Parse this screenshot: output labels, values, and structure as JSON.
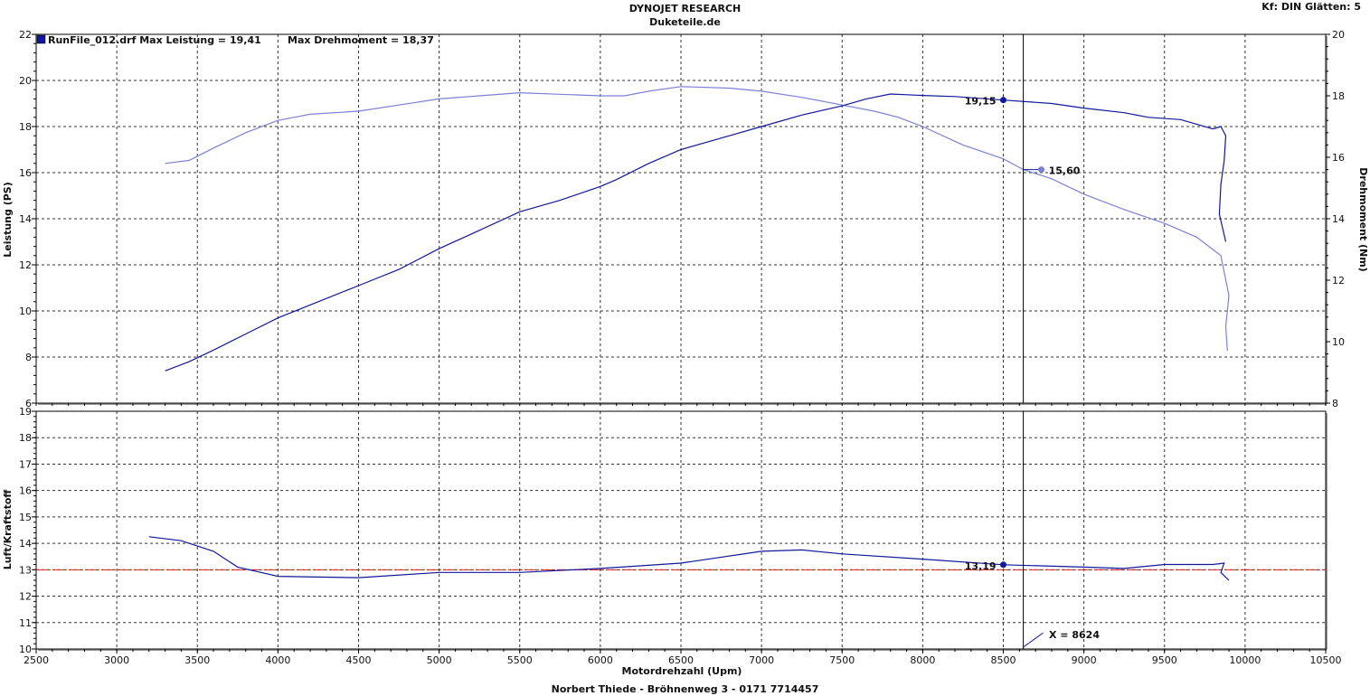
{
  "header": {
    "title": "DYNOJET RESEARCH",
    "subtitle": "Duketeile.de",
    "settings": "Kf: DIN  Glätten: 5"
  },
  "footer": {
    "text": "Norbert Thiede - Bröhnenweg 3 - 0171 7714457"
  },
  "colors": {
    "power": "#10189c",
    "torque": "#7b80d6",
    "afr": "#10189c",
    "afr_ref": "#e02020",
    "cursor": "#000000"
  },
  "chart_data": [
    {
      "type": "line",
      "legend": {
        "label": "RunFile_012.drf Max Leistung = 19,41",
        "extra": "Max Drehmoment = 18,37",
        "placement": "top-left"
      },
      "xlim": [
        2500,
        10500
      ],
      "xticks": [
        "2500",
        "3000",
        "3500",
        "4000",
        "4500",
        "5000",
        "5500",
        "6000",
        "6500",
        "7000",
        "7500",
        "8000",
        "8500",
        "9000",
        "9500",
        "10000",
        "10500"
      ],
      "ylabel": "Leistung (PS)",
      "ylim": [
        6,
        22
      ],
      "yticks": [
        "6",
        "8",
        "10",
        "12",
        "14",
        "16",
        "18",
        "20",
        "22"
      ],
      "y2label": "Drehmoment (Nm)",
      "y2lim": [
        8,
        20
      ],
      "y2ticks": [
        "8",
        "10",
        "12",
        "14",
        "16",
        "18",
        "20"
      ],
      "grid": true,
      "series": [
        {
          "axis": "left",
          "points": [
            [
              3300,
              7.4
            ],
            [
              3450,
              7.8
            ],
            [
              3600,
              8.3
            ],
            [
              3800,
              9.0
            ],
            [
              4000,
              9.7
            ],
            [
              4250,
              10.4
            ],
            [
              4500,
              11.1
            ],
            [
              4750,
              11.8
            ],
            [
              5000,
              12.7
            ],
            [
              5250,
              13.5
            ],
            [
              5500,
              14.3
            ],
            [
              5750,
              14.8
            ],
            [
              6000,
              15.4
            ],
            [
              6100,
              15.7
            ],
            [
              6300,
              16.4
            ],
            [
              6500,
              17.0
            ],
            [
              6800,
              17.6
            ],
            [
              7000,
              18.0
            ],
            [
              7250,
              18.5
            ],
            [
              7500,
              18.9
            ],
            [
              7650,
              19.2
            ],
            [
              7800,
              19.41
            ],
            [
              8000,
              19.35
            ],
            [
              8200,
              19.3
            ],
            [
              8500,
              19.15
            ],
            [
              8800,
              19.0
            ],
            [
              9000,
              18.8
            ],
            [
              9250,
              18.6
            ],
            [
              9400,
              18.4
            ],
            [
              9600,
              18.3
            ],
            [
              9700,
              18.1
            ],
            [
              9800,
              17.9
            ],
            [
              9850,
              18.0
            ],
            [
              9880,
              17.6
            ],
            [
              9870,
              16.5
            ],
            [
              9850,
              15.5
            ],
            [
              9840,
              14.2
            ],
            [
              9880,
              13.0
            ]
          ]
        },
        {
          "axis": "right",
          "points": [
            [
              3300,
              15.8
            ],
            [
              3450,
              15.9
            ],
            [
              3600,
              16.3
            ],
            [
              3800,
              16.8
            ],
            [
              4000,
              17.2
            ],
            [
              4200,
              17.4
            ],
            [
              4500,
              17.5
            ],
            [
              4750,
              17.7
            ],
            [
              5000,
              17.9
            ],
            [
              5250,
              18.0
            ],
            [
              5500,
              18.1
            ],
            [
              5750,
              18.05
            ],
            [
              6000,
              18.0
            ],
            [
              6150,
              18.0
            ],
            [
              6300,
              18.15
            ],
            [
              6500,
              18.3
            ],
            [
              6800,
              18.25
            ],
            [
              7000,
              18.15
            ],
            [
              7250,
              17.95
            ],
            [
              7500,
              17.7
            ],
            [
              7700,
              17.5
            ],
            [
              7850,
              17.3
            ],
            [
              8000,
              17.0
            ],
            [
              8250,
              16.4
            ],
            [
              8500,
              15.95
            ],
            [
              8624,
              15.6
            ],
            [
              8800,
              15.3
            ],
            [
              9000,
              14.8
            ],
            [
              9250,
              14.3
            ],
            [
              9500,
              13.85
            ],
            [
              9700,
              13.4
            ],
            [
              9800,
              13.0
            ],
            [
              9850,
              12.8
            ],
            [
              9900,
              11.5
            ],
            [
              9880,
              10.5
            ],
            [
              9890,
              9.7
            ]
          ]
        }
      ],
      "annotations": [
        {
          "text": "19,15",
          "x": 8500,
          "y": 19.15,
          "axis": "left"
        },
        {
          "text": "15,60",
          "x": 8624,
          "y": 15.6,
          "axis": "right"
        }
      ]
    },
    {
      "type": "line",
      "xlabel": "Motordrehzahl (Upm)",
      "xlim": [
        2500,
        10500
      ],
      "xticks": [
        "2500",
        "3000",
        "3500",
        "4000",
        "4500",
        "5000",
        "5500",
        "6000",
        "6500",
        "7000",
        "7500",
        "8000",
        "8500",
        "9000",
        "9500",
        "10000",
        "10500"
      ],
      "ylabel": "Luft/Kraftstoff",
      "ylim": [
        10,
        19
      ],
      "yticks": [
        "10",
        "11",
        "12",
        "13",
        "14",
        "15",
        "16",
        "17",
        "18",
        "19"
      ],
      "grid": true,
      "reference_line": 13.0,
      "series": [
        {
          "points": [
            [
              3200,
              14.25
            ],
            [
              3400,
              14.1
            ],
            [
              3600,
              13.7
            ],
            [
              3750,
              13.1
            ],
            [
              4000,
              12.75
            ],
            [
              4500,
              12.7
            ],
            [
              5000,
              12.9
            ],
            [
              5500,
              12.9
            ],
            [
              6000,
              13.05
            ],
            [
              6500,
              13.25
            ],
            [
              7000,
              13.7
            ],
            [
              7250,
              13.75
            ],
            [
              7500,
              13.6
            ],
            [
              8000,
              13.4
            ],
            [
              8500,
              13.19
            ],
            [
              9000,
              13.1
            ],
            [
              9250,
              13.05
            ],
            [
              9500,
              13.2
            ],
            [
              9800,
              13.2
            ],
            [
              9870,
              13.25
            ],
            [
              9850,
              12.9
            ],
            [
              9900,
              12.6
            ]
          ]
        }
      ],
      "annotations": [
        {
          "text": "13,19",
          "x": 8500,
          "y": 13.19
        }
      ]
    }
  ],
  "cursor": {
    "label": "X = 8624",
    "x": 8624
  }
}
